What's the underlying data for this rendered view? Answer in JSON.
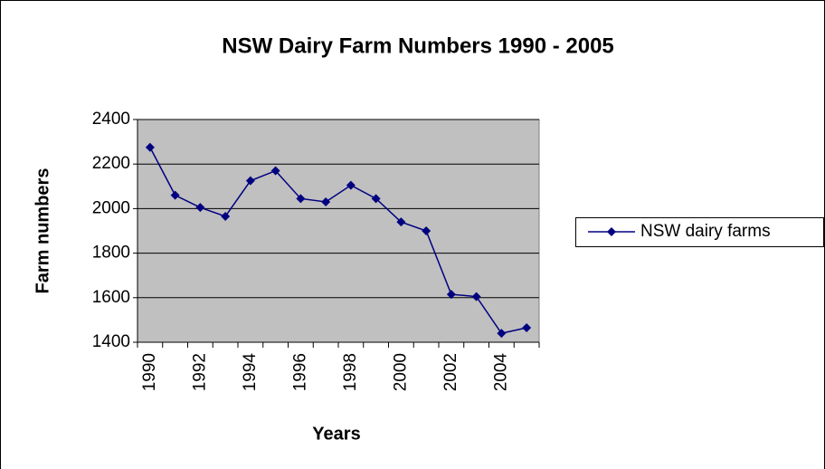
{
  "chart_data": {
    "type": "line",
    "title": "NSW Dairy Farm Numbers 1990 - 2005",
    "x_label": "Years",
    "y_label": "Farm numbers",
    "categories": [
      "1990",
      null,
      "1992",
      null,
      "1994",
      null,
      "1996",
      null,
      "1998",
      null,
      "2000",
      null,
      "2002",
      null,
      "2004",
      null
    ],
    "series": [
      {
        "name": "NSW dairy farms",
        "color": "#000080",
        "values": [
          2275,
          2060,
          2005,
          1965,
          2125,
          2170,
          2045,
          2030,
          2105,
          2045,
          1940,
          1900,
          1615,
          1605,
          1440,
          1465
        ]
      }
    ],
    "ylim": [
      1400,
      2400
    ],
    "yticks": [
      1400,
      1600,
      1800,
      2000,
      2200,
      2400
    ],
    "grid": true,
    "legend": "right",
    "plot_background": "#c0c0c0"
  }
}
